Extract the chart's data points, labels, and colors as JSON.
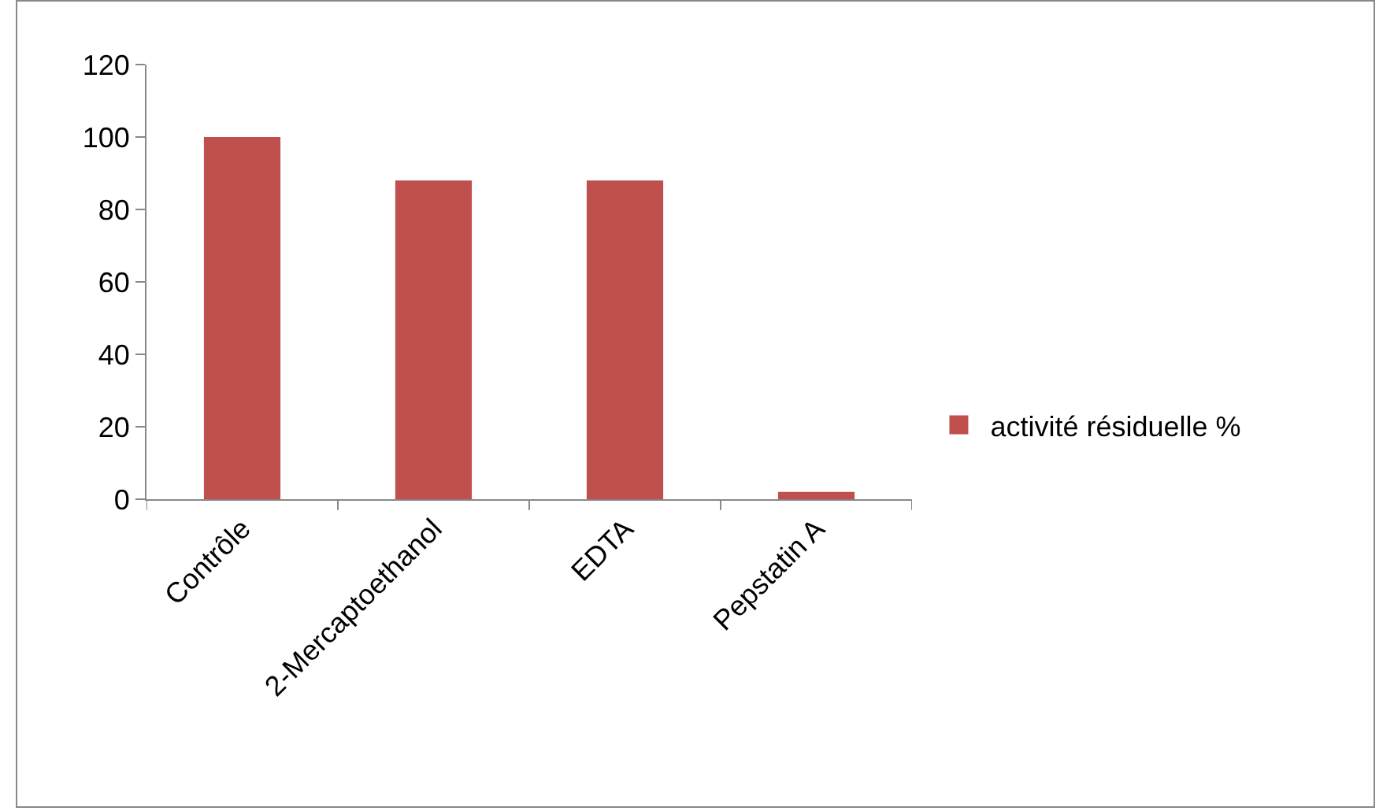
{
  "chart_data": {
    "type": "bar",
    "categories": [
      "Contrôle",
      "2-Mercaptoethanol",
      "EDTA",
      "Pepstatin A"
    ],
    "series": [
      {
        "name": "activité résiduelle %",
        "color": "#c0504d",
        "values": [
          100,
          88,
          88,
          2
        ]
      }
    ],
    "ylim": [
      0,
      120
    ],
    "yticks": [
      0,
      20,
      40,
      60,
      80,
      100,
      120
    ],
    "grid": false,
    "legend": "right"
  }
}
